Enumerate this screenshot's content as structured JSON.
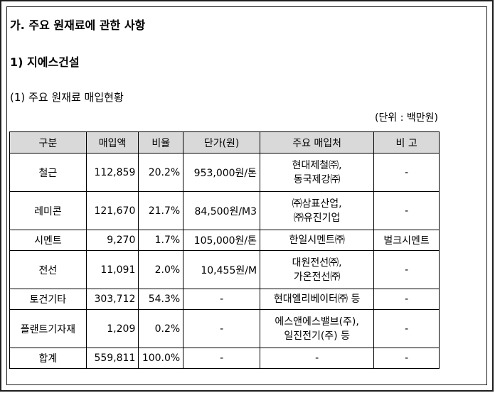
{
  "section_title": "가. 주요 원재료에 관한 사항",
  "company_title": "1) 지에스건설",
  "table_title": "(1) 주요 원재료 매입현황",
  "unit": "(단위 : 백만원)",
  "columns": [
    "구분",
    "매입액",
    "비율",
    "단가(원)",
    "주요 매입처",
    "비 고"
  ],
  "rows": [
    {
      "kind": "double",
      "category": "철근",
      "amount": "112,859",
      "ratio": "20.2%",
      "price": "953,000원/톤",
      "suppliers": [
        "현대제철㈜,",
        "동국제강㈜"
      ],
      "note": "-"
    },
    {
      "kind": "double",
      "category": "레미콘",
      "amount": "121,670",
      "ratio": "21.7%",
      "price": "84,500원/M3",
      "suppliers": [
        "㈜삼표산업,",
        "㈜유진기업"
      ],
      "note": "-"
    },
    {
      "kind": "single",
      "category": "시멘트",
      "amount": "9,270",
      "ratio": "1.7%",
      "price": "105,000원/톤",
      "suppliers": [
        "한일시멘트㈜"
      ],
      "note": "벌크시멘트"
    },
    {
      "kind": "double",
      "category": "전선",
      "amount": "11,091",
      "ratio": "2.0%",
      "price": "10,455원/M",
      "suppliers": [
        "대원전선㈜,",
        "가온전선㈜"
      ],
      "note": "-"
    },
    {
      "kind": "single",
      "category": "토건기타",
      "amount": "303,712",
      "ratio": "54.3%",
      "price": "-",
      "suppliers": [
        "현대엘리베이터㈜ 등"
      ],
      "note": "-"
    },
    {
      "kind": "double",
      "category": "플랜트기자재",
      "amount": "1,209",
      "ratio": "0.2%",
      "price": "-",
      "suppliers": [
        "에스앤에스밸브(주),",
        "일진전기(주) 등"
      ],
      "note": "-"
    },
    {
      "kind": "single",
      "category": "합계",
      "amount": "559,811",
      "ratio": "100.0%",
      "price": "-",
      "suppliers": [
        "-"
      ],
      "note": "-"
    }
  ]
}
